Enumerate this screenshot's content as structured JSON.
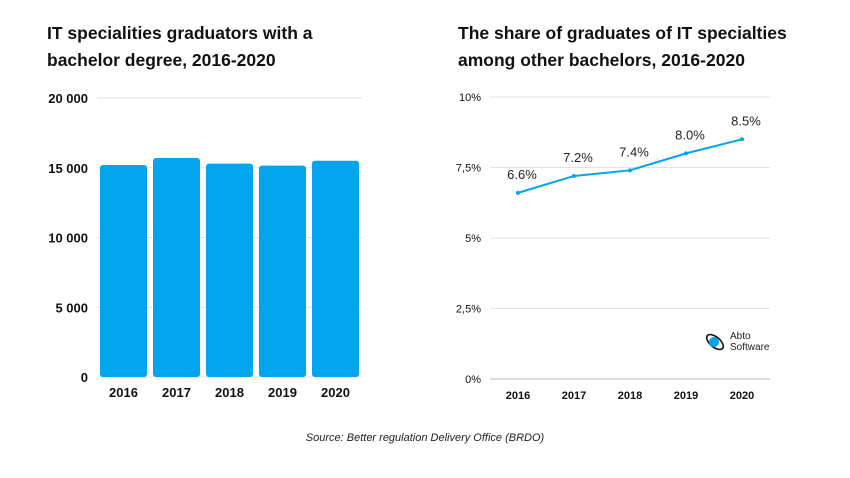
{
  "chart_data": [
    {
      "type": "bar",
      "title": "IT specialities graduators with a bachelor degree, 2016-2020",
      "categories": [
        "2016",
        "2017",
        "2018",
        "2019",
        "2020"
      ],
      "values": [
        15200,
        15700,
        15300,
        15150,
        15500
      ],
      "ylim": [
        0,
        20000
      ],
      "yticks": [
        "0",
        "5 000",
        "10 000",
        "15 000",
        "20 000"
      ],
      "grid": true,
      "color": "#03A4EE"
    },
    {
      "type": "line",
      "title": "The share of graduates of IT specialties among other bachelors,  2016-2020",
      "categories": [
        "2016",
        "2017",
        "2018",
        "2019",
        "2020"
      ],
      "values": [
        6.6,
        7.2,
        7.4,
        8.0,
        8.5
      ],
      "labels": [
        "6.6%",
        "7.2%",
        "7.4%",
        "8.0%",
        "8.5%"
      ],
      "ylim": [
        0,
        10
      ],
      "yticks": [
        "0%",
        "2,5%",
        "5%",
        "7,5%",
        "10%"
      ],
      "grid": true,
      "color": "#03A4EE"
    }
  ],
  "source": "Source: Better regulation Delivery Office (BRDO)",
  "logo": {
    "line1": "Abto",
    "line2": "Software"
  }
}
